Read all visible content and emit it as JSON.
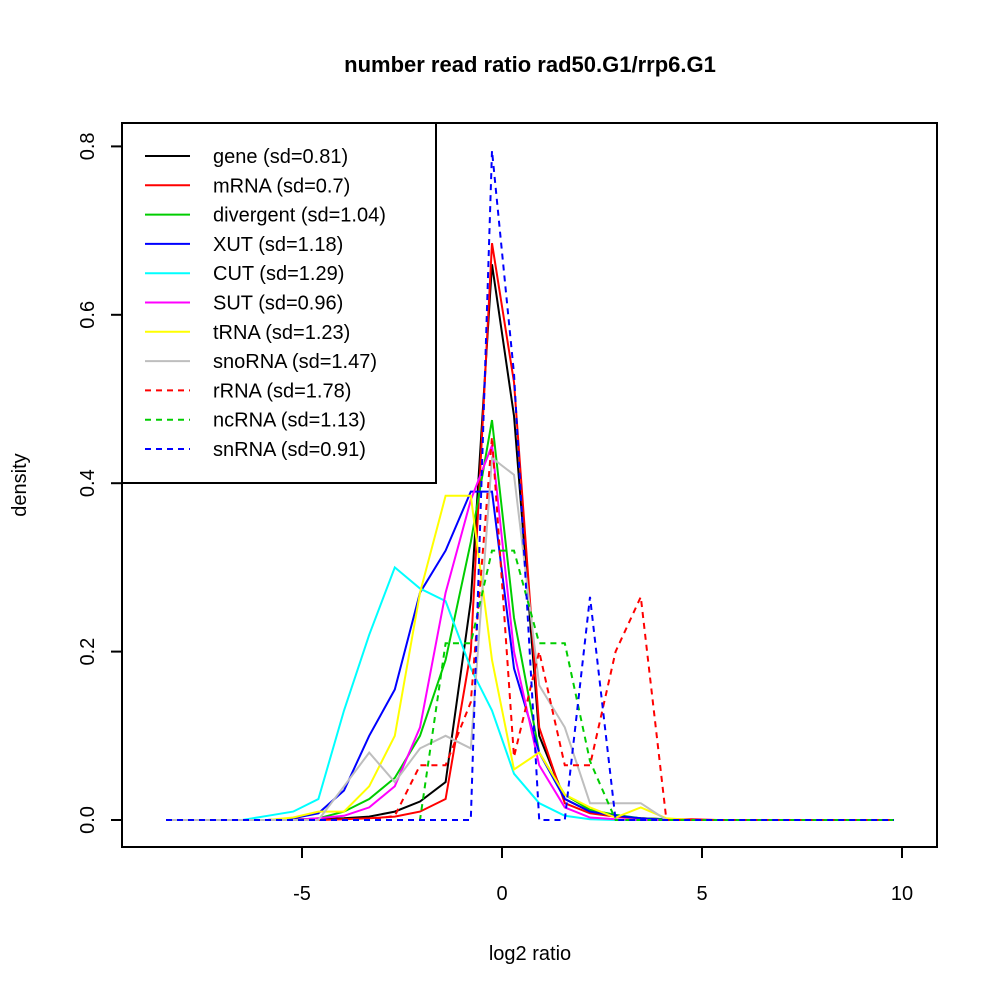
{
  "chart_data": {
    "type": "line",
    "title": "number read ratio rad50.G1/rrp6.G1",
    "xlabel": "log2 ratio",
    "ylabel": "density",
    "xlim": [
      -9.0,
      10.9
    ],
    "ylim": [
      -0.033,
      0.83
    ],
    "xticks": [
      -5,
      0,
      5,
      10
    ],
    "xtick_labels": [
      "-5",
      "0",
      "5",
      "10"
    ],
    "yticks": [
      0.0,
      0.2,
      0.4,
      0.6,
      0.8
    ],
    "ytick_labels": [
      "0.0",
      "0.2",
      "0.4",
      "0.6",
      "0.8"
    ],
    "grid": false,
    "legend_position": "top-left",
    "x": [
      -8.4,
      -7.76,
      -7.13,
      -6.49,
      -5.86,
      -5.22,
      -4.59,
      -3.95,
      -3.32,
      -2.68,
      -2.05,
      -1.41,
      -0.78,
      -0.25,
      0.3,
      0.93,
      1.57,
      2.2,
      2.84,
      3.47,
      4.11,
      4.74,
      5.38,
      6.01,
      6.65,
      7.28,
      7.92,
      8.55,
      9.19,
      9.8
    ],
    "series": [
      {
        "name": "gene (sd=0.81)",
        "color": "#000000",
        "dash": false,
        "values": [
          0,
          0,
          0,
          0,
          0,
          0.001,
          0.001,
          0.002,
          0.004,
          0.01,
          0.022,
          0.045,
          0.26,
          0.66,
          0.48,
          0.1,
          0.025,
          0.01,
          0.005,
          0.002,
          0.001,
          0,
          0,
          0,
          0,
          0,
          0,
          0,
          0,
          0
        ]
      },
      {
        "name": "mRNA (sd=0.7)",
        "color": "#ff0000",
        "dash": false,
        "values": [
          0,
          0,
          0,
          0,
          0,
          0,
          0,
          0.001,
          0.002,
          0.004,
          0.01,
          0.025,
          0.2,
          0.685,
          0.52,
          0.11,
          0.02,
          0.008,
          0.004,
          0.002,
          0.001,
          0.001,
          0,
          0,
          0,
          0,
          0,
          0,
          0,
          0
        ]
      },
      {
        "name": "divergent (sd=1.04)",
        "color": "#00cd00",
        "dash": false,
        "values": [
          0,
          0,
          0,
          0,
          0,
          0,
          0.002,
          0.01,
          0.025,
          0.05,
          0.1,
          0.19,
          0.33,
          0.475,
          0.24,
          0.08,
          0.03,
          0.012,
          0.006,
          0.002,
          0.001,
          0,
          0,
          0,
          0,
          0,
          0,
          0,
          0,
          0
        ]
      },
      {
        "name": "XUT (sd=1.18)",
        "color": "#0000ff",
        "dash": false,
        "values": [
          0,
          0,
          0,
          0,
          0,
          0.002,
          0.008,
          0.035,
          0.1,
          0.155,
          0.27,
          0.32,
          0.39,
          0.39,
          0.18,
          0.08,
          0.025,
          0.01,
          0.005,
          0.002,
          0,
          0,
          0,
          0,
          0,
          0,
          0,
          0,
          0,
          0
        ]
      },
      {
        "name": "CUT (sd=1.29)",
        "color": "#00ffff",
        "dash": false,
        "values": [
          0,
          0,
          0,
          0,
          0.005,
          0.01,
          0.025,
          0.13,
          0.22,
          0.3,
          0.275,
          0.26,
          0.18,
          0.13,
          0.055,
          0.02,
          0.005,
          0.001,
          0,
          0,
          0,
          0,
          0,
          0,
          0,
          0,
          0,
          0,
          0,
          0
        ]
      },
      {
        "name": "SUT (sd=0.96)",
        "color": "#ff00ff",
        "dash": false,
        "values": [
          0,
          0,
          0,
          0,
          0,
          0,
          0.002,
          0.005,
          0.015,
          0.04,
          0.11,
          0.27,
          0.38,
          0.445,
          0.2,
          0.065,
          0.015,
          0.003,
          0.001,
          0,
          0,
          0,
          0,
          0,
          0,
          0,
          0,
          0,
          0,
          0
        ]
      },
      {
        "name": "tRNA (sd=1.23)",
        "color": "#ffff00",
        "dash": false,
        "values": [
          0,
          0,
          0,
          0,
          0,
          0.003,
          0.01,
          0.01,
          0.04,
          0.1,
          0.27,
          0.385,
          0.385,
          0.19,
          0.06,
          0.08,
          0.03,
          0.015,
          0.003,
          0.015,
          0.002,
          0,
          0,
          0,
          0,
          0,
          0,
          0,
          0,
          0
        ]
      },
      {
        "name": "snoRNA (sd=1.47)",
        "color": "#bebebe",
        "dash": false,
        "values": [
          0,
          0,
          0,
          0,
          0,
          0,
          0,
          0.04,
          0.08,
          0.045,
          0.085,
          0.1,
          0.085,
          0.43,
          0.41,
          0.16,
          0.11,
          0.02,
          0.02,
          0.02,
          0,
          0,
          0,
          0,
          0,
          0,
          0,
          0,
          0,
          0
        ]
      },
      {
        "name": "rRNA (sd=1.78)",
        "color": "#ff0000",
        "dash": true,
        "values": [
          0,
          0,
          0,
          0,
          0,
          0,
          0,
          0,
          0,
          0.005,
          0.065,
          0.065,
          0.14,
          0.455,
          0.075,
          0.2,
          0.065,
          0.065,
          0.2,
          0.265,
          0,
          0,
          0,
          0,
          0,
          0,
          0,
          0,
          0,
          0
        ]
      },
      {
        "name": "ncRNA (sd=1.13)",
        "color": "#00cd00",
        "dash": true,
        "values": [
          0,
          0,
          0,
          0,
          0,
          0,
          0,
          0,
          0,
          0,
          0,
          0.21,
          0.21,
          0.32,
          0.32,
          0.21,
          0.21,
          0.07,
          0,
          0,
          0,
          0,
          0,
          0,
          0,
          0,
          0,
          0,
          0,
          0
        ]
      },
      {
        "name": "snRNA (sd=0.91)",
        "color": "#0000ff",
        "dash": true,
        "values": [
          0,
          0,
          0,
          0,
          0,
          0,
          0,
          0,
          0,
          0,
          0,
          0,
          0,
          0.795,
          0.53,
          0,
          0,
          0.265,
          0,
          0,
          0,
          0,
          0,
          0,
          0,
          0,
          0,
          0,
          0,
          0
        ]
      }
    ]
  }
}
